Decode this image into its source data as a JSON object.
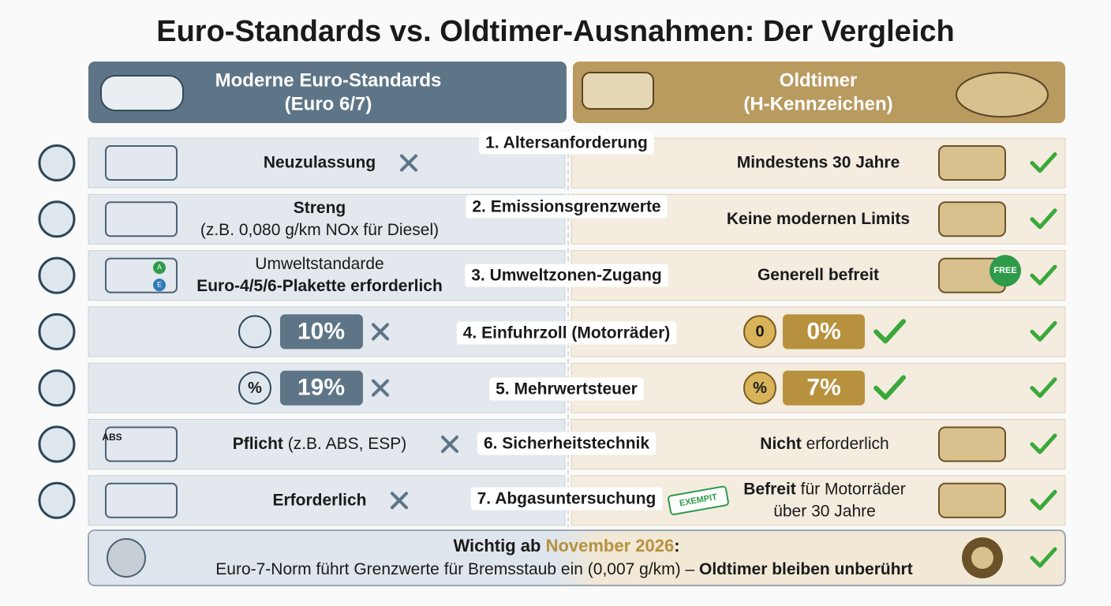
{
  "title": "Euro-Standards vs. Oldtimer-Ausnahmen: Der Vergleich",
  "columns": [
    {
      "lines": [
        "Moderne Euro-Standards",
        "(Euro 6/7)"
      ]
    },
    {
      "lines": [
        "Oldtimer",
        "(H-Kennzeichen)"
      ]
    }
  ],
  "rows": [
    {
      "label": "1. Altersanforderung",
      "left": [
        [
          {
            "text": "Neuzulassung",
            "bold": true
          }
        ]
      ],
      "right": [
        [
          {
            "text": "Mindestens 30 Jahre",
            "bold": true
          }
        ]
      ]
    },
    {
      "label": "2. Emissionsgrenzwerte",
      "left": [
        [
          {
            "text": "Streng",
            "bold": true
          }
        ],
        [
          {
            "text": "(z.B. 0,080 g/km NOx für Diesel)",
            "bold": false
          }
        ]
      ],
      "right": [
        [
          {
            "text": "Keine modernen Limits",
            "bold": true
          }
        ]
      ]
    },
    {
      "label": "3. Umweltzonen-Zugang",
      "left": [
        [
          {
            "text": "Umweltstandarde",
            "bold": false
          }
        ],
        [
          {
            "text": "Euro-4/5/6-Plakette erforderlich",
            "bold": true
          }
        ]
      ],
      "right": [
        [
          {
            "text": "Generell befreit",
            "bold": true
          }
        ]
      ]
    },
    {
      "label": "4. Einfuhrzoll (Motorräder)",
      "left_badge": "10%",
      "right_badge": "0%"
    },
    {
      "label": "5. Mehrwertsteuer",
      "left_badge": "19%",
      "right_badge": "7%"
    },
    {
      "label": "6. Sicherheitstechnik",
      "left": [
        [
          {
            "text": "Pflicht",
            "bold": true
          },
          {
            "text": " (z.B. ABS, ESP)",
            "bold": false
          }
        ]
      ],
      "right": [
        [
          {
            "text": "Nicht",
            "bold": true
          },
          {
            "text": " erforderlich",
            "bold": false
          }
        ]
      ]
    },
    {
      "label": "7. Abgasuntersuchung",
      "left": [
        [
          {
            "text": "Erforderlich",
            "bold": true
          }
        ]
      ],
      "right": [
        [
          {
            "text": "Befreit",
            "bold": true
          },
          {
            "text": " für Motorräder",
            "bold": false
          }
        ],
        [
          {
            "text": "über 30 Jahre",
            "bold": false
          }
        ]
      ]
    }
  ],
  "icon_texts": {
    "abs": "ABS",
    "free": "FREE",
    "exempt": "EXEMPIT",
    "plakette_a": "A",
    "plakette_e": "E",
    "percent": "%",
    "coin": "0"
  },
  "footer": {
    "line1": [
      {
        "text": "Wichtig ab ",
        "bold": true,
        "highlight": false
      },
      {
        "text": "November 2026",
        "bold": true,
        "highlight": true
      },
      {
        "text": ":",
        "bold": true,
        "highlight": false
      }
    ],
    "line2": [
      {
        "text": "Euro-7-Norm führt Grenzwerte für Bremsstaub ein (0,007 g/km) – ",
        "bold": false,
        "highlight": false
      },
      {
        "text": "Oldtimer bleiben unberührt",
        "bold": true,
        "highlight": false
      }
    ]
  }
}
